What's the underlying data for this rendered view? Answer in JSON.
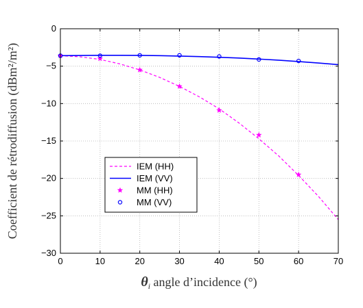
{
  "chart_data": {
    "type": "line",
    "title": "",
    "xlabel_symbol": "θ",
    "xlabel_subscript": "i",
    "xlabel_text": " angle d’incidence (°)",
    "ylabel": "Coefficient de rétrodiffusion (dBm²/m²)",
    "xlim": [
      0,
      70
    ],
    "ylim": [
      -30,
      0
    ],
    "xticks": [
      0,
      10,
      20,
      30,
      40,
      50,
      60,
      70
    ],
    "yticks": [
      0,
      -5,
      -10,
      -15,
      -20,
      -25,
      -30
    ],
    "grid": true,
    "legend_position": "lower-left-center",
    "series": [
      {
        "name": "IEM (HH)",
        "kind": "line",
        "style": "dashed",
        "color": "#ff00ff",
        "x": [
          0,
          5,
          10,
          15,
          20,
          25,
          30,
          35,
          40,
          45,
          50,
          55,
          60,
          65,
          70
        ],
        "y": [
          -3.6,
          -3.75,
          -4.1,
          -4.7,
          -5.5,
          -6.5,
          -7.7,
          -9.1,
          -10.7,
          -12.6,
          -14.7,
          -17.0,
          -19.6,
          -22.4,
          -25.5
        ]
      },
      {
        "name": "IEM (VV)",
        "kind": "line",
        "style": "solid",
        "color": "#0000ff",
        "x": [
          0,
          5,
          10,
          15,
          20,
          25,
          30,
          35,
          40,
          45,
          50,
          55,
          60,
          65,
          70
        ],
        "y": [
          -3.6,
          -3.57,
          -3.55,
          -3.55,
          -3.56,
          -3.6,
          -3.65,
          -3.72,
          -3.81,
          -3.92,
          -4.05,
          -4.2,
          -4.38,
          -4.58,
          -4.8
        ]
      },
      {
        "name": "MM (HH)",
        "kind": "marker",
        "marker": "star",
        "color": "#ff00ff",
        "x": [
          0,
          10,
          20,
          30,
          40,
          50,
          60
        ],
        "y": [
          -3.6,
          -4.0,
          -5.5,
          -7.7,
          -10.9,
          -14.2,
          -19.5
        ]
      },
      {
        "name": "MM (VV)",
        "kind": "marker",
        "marker": "circle",
        "color": "#0000ff",
        "x": [
          0,
          10,
          20,
          30,
          40,
          50,
          60
        ],
        "y": [
          -3.6,
          -3.6,
          -3.55,
          -3.55,
          -3.7,
          -4.1,
          -4.3
        ]
      }
    ]
  }
}
